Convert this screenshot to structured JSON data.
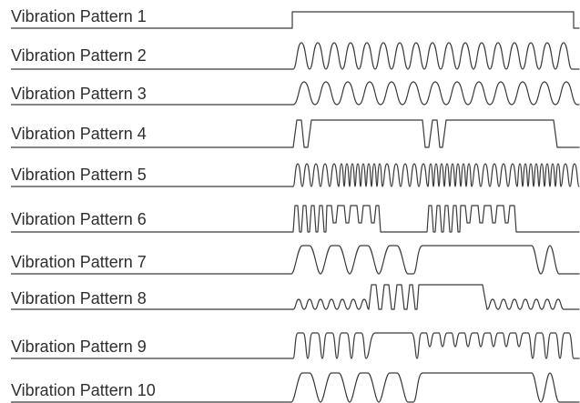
{
  "patterns": [
    {
      "label": "Vibration Pattern 1"
    },
    {
      "label": "Vibration Pattern 2"
    },
    {
      "label": "Vibration Pattern 3"
    },
    {
      "label": "Vibration Pattern 4"
    },
    {
      "label": "Vibration Pattern 5"
    },
    {
      "label": "Vibration Pattern 6"
    },
    {
      "label": "Vibration Pattern 7"
    },
    {
      "label": "Vibration Pattern 8"
    },
    {
      "label": "Vibration Pattern 9"
    },
    {
      "label": "Vibration Pattern 10"
    }
  ]
}
